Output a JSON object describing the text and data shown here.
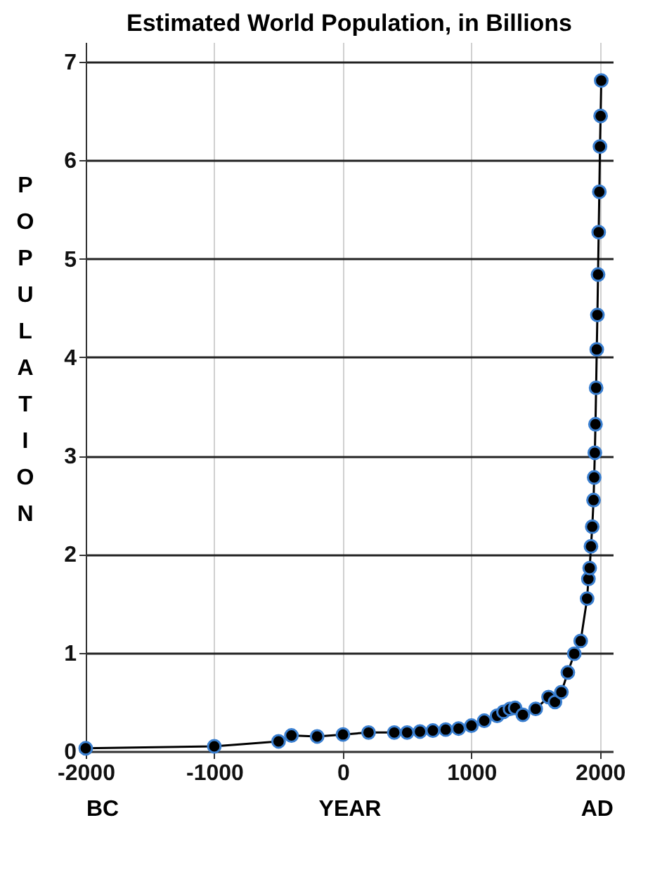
{
  "chart_data": {
    "type": "line",
    "title": "Estimated World Population, in Billions",
    "xlabel": "YEAR",
    "ylabel": "POPULATION",
    "annotations": [
      "BC",
      "AD"
    ],
    "x": [
      -2000,
      -1000,
      -500,
      -400,
      -200,
      1,
      200,
      400,
      500,
      600,
      700,
      800,
      900,
      1000,
      1100,
      1200,
      1250,
      1300,
      1340,
      1400,
      1500,
      1600,
      1650,
      1700,
      1750,
      1800,
      1850,
      1900,
      1910,
      1920,
      1930,
      1940,
      1950,
      1955,
      1960,
      1965,
      1970,
      1975,
      1980,
      1985,
      1990,
      1995,
      2000,
      2005,
      2010
    ],
    "series": [
      {
        "color": "#000000",
        "values": [
          0.03,
          0.05,
          0.1,
          0.16,
          0.15,
          0.17,
          0.19,
          0.19,
          0.19,
          0.2,
          0.21,
          0.22,
          0.23,
          0.26,
          0.31,
          0.36,
          0.4,
          0.43,
          0.44,
          0.37,
          0.43,
          0.55,
          0.5,
          0.6,
          0.8,
          0.99,
          1.12,
          1.55,
          1.75,
          1.86,
          2.08,
          2.28,
          2.55,
          2.78,
          3.03,
          3.32,
          3.69,
          4.08,
          4.43,
          4.84,
          5.27,
          5.68,
          6.14,
          6.45,
          6.81
        ]
      }
    ],
    "xlim": [
      -2000,
      2100
    ],
    "xticks": [
      -2000,
      -1000,
      0,
      1000,
      2000
    ],
    "ylim": [
      0,
      7.2
    ],
    "yticks": [
      0,
      1,
      2,
      3,
      4,
      5,
      6,
      7
    ],
    "grid": true,
    "marker": "circle",
    "line_style": "solid"
  }
}
